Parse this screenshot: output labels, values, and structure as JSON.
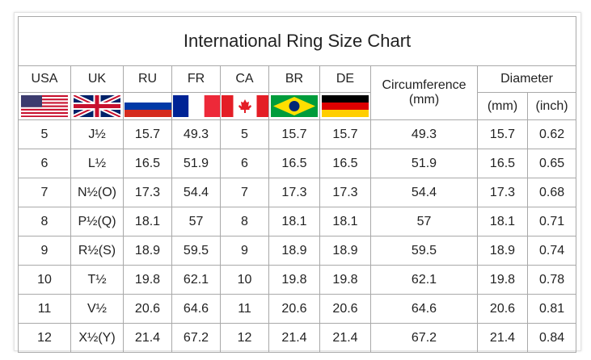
{
  "title": "International Ring Size Chart",
  "columns": [
    "USA",
    "UK",
    "RU",
    "FR",
    "CA",
    "BR",
    "DE"
  ],
  "circumference_header": "Circumference",
  "circumference_unit": "(mm)",
  "diameter_header": "Diameter",
  "diameter_units": [
    "(mm)",
    "(inch)"
  ],
  "flags": [
    "us-flag-icon",
    "uk-flag-icon",
    "russia-flag-icon",
    "france-flag-icon",
    "canada-flag-icon",
    "brazil-flag-icon",
    "germany-flag-icon"
  ],
  "rows": [
    [
      "5",
      "J½",
      "15.7",
      "49.3",
      "5",
      "15.7",
      "15.7",
      "49.3",
      "15.7",
      "0.62"
    ],
    [
      "6",
      "L½",
      "16.5",
      "51.9",
      "6",
      "16.5",
      "16.5",
      "51.9",
      "16.5",
      "0.65"
    ],
    [
      "7",
      "N½(O)",
      "17.3",
      "54.4",
      "7",
      "17.3",
      "17.3",
      "54.4",
      "17.3",
      "0.68"
    ],
    [
      "8",
      "P½(Q)",
      "18.1",
      "57",
      "8",
      "18.1",
      "18.1",
      "57",
      "18.1",
      "0.71"
    ],
    [
      "9",
      "R½(S)",
      "18.9",
      "59.5",
      "9",
      "18.9",
      "18.9",
      "59.5",
      "18.9",
      "0.74"
    ],
    [
      "10",
      "T½",
      "19.8",
      "62.1",
      "10",
      "19.8",
      "19.8",
      "62.1",
      "19.8",
      "0.78"
    ],
    [
      "11",
      "V½",
      "20.6",
      "64.6",
      "11",
      "20.6",
      "20.6",
      "64.6",
      "20.6",
      "0.81"
    ],
    [
      "12",
      "X½(Y)",
      "21.4",
      "67.2",
      "12",
      "21.4",
      "21.4",
      "67.2",
      "21.4",
      "0.84"
    ]
  ]
}
